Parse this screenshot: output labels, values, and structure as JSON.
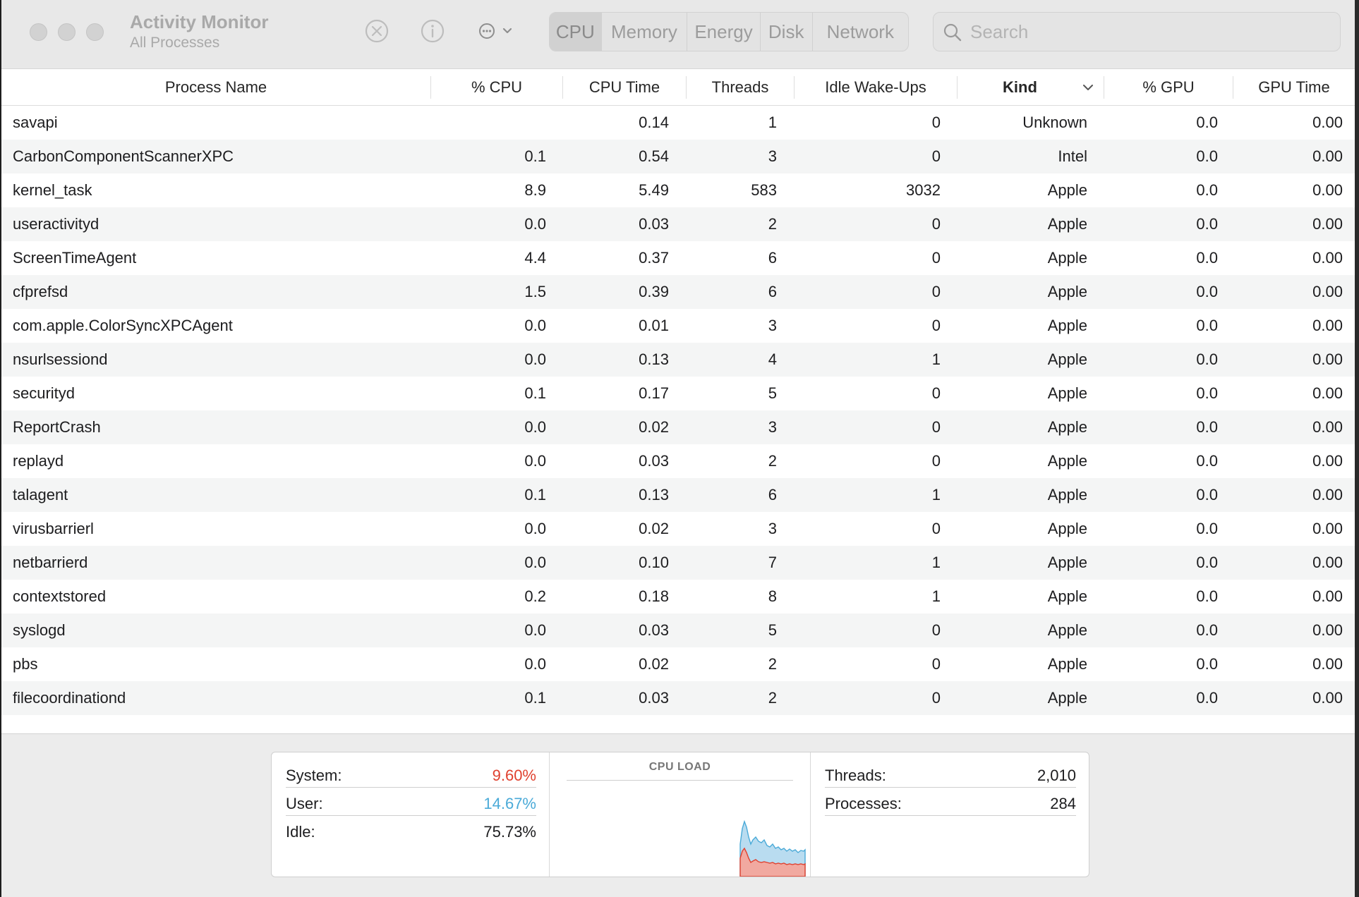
{
  "window": {
    "title": "Activity Monitor",
    "subtitle": "All Processes"
  },
  "toolbar": {
    "stop_icon": "stop-process-icon",
    "info_icon": "info-icon",
    "more_icon": "more-options-icon",
    "tabs": [
      {
        "label": "CPU",
        "active": true
      },
      {
        "label": "Memory",
        "active": false
      },
      {
        "label": "Energy",
        "active": false
      },
      {
        "label": "Disk",
        "active": false
      },
      {
        "label": "Network",
        "active": false
      }
    ],
    "search_placeholder": "Search"
  },
  "table": {
    "columns": {
      "name": "Process Name",
      "cpu": "% CPU",
      "cpu_time": "CPU Time",
      "threads": "Threads",
      "idle": "Idle Wake-Ups",
      "kind": "Kind",
      "gpu": "% GPU",
      "gpu_time": "GPU Time"
    },
    "sorted_column": "kind",
    "rows": [
      {
        "name": "savapi",
        "cpu": "",
        "cpu_time": "0.14",
        "threads": "1",
        "idle": "0",
        "kind": "Unknown",
        "gpu": "0.0",
        "gpu_time": "0.00"
      },
      {
        "name": "CarbonComponentScannerXPC",
        "cpu": "0.1",
        "cpu_time": "0.54",
        "threads": "3",
        "idle": "0",
        "kind": "Intel",
        "gpu": "0.0",
        "gpu_time": "0.00"
      },
      {
        "name": "kernel_task",
        "cpu": "8.9",
        "cpu_time": "5.49",
        "threads": "583",
        "idle": "3032",
        "kind": "Apple",
        "gpu": "0.0",
        "gpu_time": "0.00"
      },
      {
        "name": "useractivityd",
        "cpu": "0.0",
        "cpu_time": "0.03",
        "threads": "2",
        "idle": "0",
        "kind": "Apple",
        "gpu": "0.0",
        "gpu_time": "0.00"
      },
      {
        "name": "ScreenTimeAgent",
        "cpu": "4.4",
        "cpu_time": "0.37",
        "threads": "6",
        "idle": "0",
        "kind": "Apple",
        "gpu": "0.0",
        "gpu_time": "0.00"
      },
      {
        "name": "cfprefsd",
        "cpu": "1.5",
        "cpu_time": "0.39",
        "threads": "6",
        "idle": "0",
        "kind": "Apple",
        "gpu": "0.0",
        "gpu_time": "0.00"
      },
      {
        "name": "com.apple.ColorSyncXPCAgent",
        "cpu": "0.0",
        "cpu_time": "0.01",
        "threads": "3",
        "idle": "0",
        "kind": "Apple",
        "gpu": "0.0",
        "gpu_time": "0.00"
      },
      {
        "name": "nsurlsessiond",
        "cpu": "0.0",
        "cpu_time": "0.13",
        "threads": "4",
        "idle": "1",
        "kind": "Apple",
        "gpu": "0.0",
        "gpu_time": "0.00"
      },
      {
        "name": "securityd",
        "cpu": "0.1",
        "cpu_time": "0.17",
        "threads": "5",
        "idle": "0",
        "kind": "Apple",
        "gpu": "0.0",
        "gpu_time": "0.00"
      },
      {
        "name": "ReportCrash",
        "cpu": "0.0",
        "cpu_time": "0.02",
        "threads": "3",
        "idle": "0",
        "kind": "Apple",
        "gpu": "0.0",
        "gpu_time": "0.00"
      },
      {
        "name": "replayd",
        "cpu": "0.0",
        "cpu_time": "0.03",
        "threads": "2",
        "idle": "0",
        "kind": "Apple",
        "gpu": "0.0",
        "gpu_time": "0.00"
      },
      {
        "name": "talagent",
        "cpu": "0.1",
        "cpu_time": "0.13",
        "threads": "6",
        "idle": "1",
        "kind": "Apple",
        "gpu": "0.0",
        "gpu_time": "0.00"
      },
      {
        "name": "virusbarrierl",
        "cpu": "0.0",
        "cpu_time": "0.02",
        "threads": "3",
        "idle": "0",
        "kind": "Apple",
        "gpu": "0.0",
        "gpu_time": "0.00"
      },
      {
        "name": "netbarrierd",
        "cpu": "0.0",
        "cpu_time": "0.10",
        "threads": "7",
        "idle": "1",
        "kind": "Apple",
        "gpu": "0.0",
        "gpu_time": "0.00"
      },
      {
        "name": "contextstored",
        "cpu": "0.2",
        "cpu_time": "0.18",
        "threads": "8",
        "idle": "1",
        "kind": "Apple",
        "gpu": "0.0",
        "gpu_time": "0.00"
      },
      {
        "name": "syslogd",
        "cpu": "0.0",
        "cpu_time": "0.03",
        "threads": "5",
        "idle": "0",
        "kind": "Apple",
        "gpu": "0.0",
        "gpu_time": "0.00"
      },
      {
        "name": "pbs",
        "cpu": "0.0",
        "cpu_time": "0.02",
        "threads": "2",
        "idle": "0",
        "kind": "Apple",
        "gpu": "0.0",
        "gpu_time": "0.00"
      },
      {
        "name": "filecoordinationd",
        "cpu": "0.1",
        "cpu_time": "0.03",
        "threads": "2",
        "idle": "0",
        "kind": "Apple",
        "gpu": "0.0",
        "gpu_time": "0.00"
      }
    ]
  },
  "footer": {
    "system_label": "System:",
    "system_value": "9.60%",
    "user_label": "User:",
    "user_value": "14.67%",
    "idle_label": "Idle:",
    "idle_value": "75.73%",
    "cpu_load_title": "CPU LOAD",
    "threads_label": "Threads:",
    "threads_value": "2,010",
    "processes_label": "Processes:",
    "processes_value": "284",
    "colors": {
      "system": "#e0412f",
      "user": "#4aaad8"
    }
  }
}
